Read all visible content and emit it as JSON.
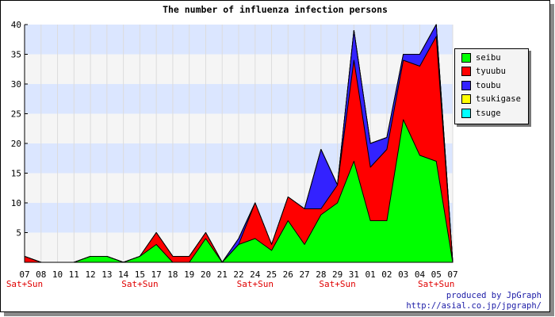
{
  "chart_data": {
    "type": "area",
    "stacked": true,
    "title": "The number of influenza infection persons",
    "categories": [
      "07",
      "08",
      "10",
      "11",
      "12",
      "13",
      "14",
      "15",
      "17",
      "18",
      "19",
      "20",
      "21",
      "22",
      "24",
      "25",
      "26",
      "27",
      "28",
      "29",
      "31",
      "01",
      "02",
      "03",
      "04",
      "05",
      "07"
    ],
    "weekend_labels": [
      "Sat+Sun",
      "",
      "",
      "",
      "",
      "",
      "",
      "Sat+Sun",
      "",
      "",
      "",
      "",
      "",
      "",
      "Sat+Sun",
      "",
      "",
      "",
      "",
      "Sat+Sun",
      "",
      "",
      "",
      "",
      "",
      "Sat+Sun",
      ""
    ],
    "ylim": [
      0,
      40
    ],
    "yticks": [
      5,
      10,
      15,
      20,
      25,
      30,
      35,
      40
    ],
    "grid": true,
    "legend_position": "right",
    "series": [
      {
        "name": "seibu",
        "color": "#00ff00",
        "values": [
          0,
          0,
          0,
          0,
          1,
          1,
          0,
          1,
          3,
          0,
          0,
          4,
          0,
          3,
          4,
          2,
          7,
          3,
          8,
          10,
          17,
          7,
          7,
          24,
          18,
          17,
          0
        ]
      },
      {
        "name": "tyuubu",
        "color": "#ff0000",
        "values": [
          1,
          0,
          0,
          0,
          0,
          0,
          0,
          0,
          2,
          1,
          1,
          1,
          0,
          0,
          6,
          1,
          4,
          6,
          1,
          3,
          17,
          9,
          12,
          10,
          15,
          21,
          0
        ]
      },
      {
        "name": "toubu",
        "color": "#3322ff",
        "values": [
          0,
          0,
          0,
          0,
          0,
          0,
          0,
          0,
          0,
          0,
          0,
          0,
          0,
          1,
          0,
          0,
          0,
          0,
          10,
          0,
          5,
          4,
          2,
          1,
          2,
          2,
          0
        ]
      },
      {
        "name": "tsukigase",
        "color": "#ffff00",
        "values": [
          0,
          0,
          0,
          0,
          0,
          0,
          0,
          0,
          0,
          0,
          0,
          0,
          0,
          0,
          0,
          0,
          0,
          0,
          0,
          0,
          0,
          0,
          0,
          0,
          0,
          0,
          0
        ]
      },
      {
        "name": "tsuge",
        "color": "#00ffff",
        "values": [
          0,
          0,
          0,
          0,
          0,
          0,
          0,
          0,
          0,
          0,
          0,
          0,
          0,
          0,
          0,
          0,
          0,
          0,
          0,
          0,
          0,
          0,
          0,
          0,
          0,
          0,
          0
        ]
      }
    ]
  },
  "credit": {
    "line1": "produced by JpGraph",
    "line2": "http://asial.co.jp/jpgraph/"
  }
}
